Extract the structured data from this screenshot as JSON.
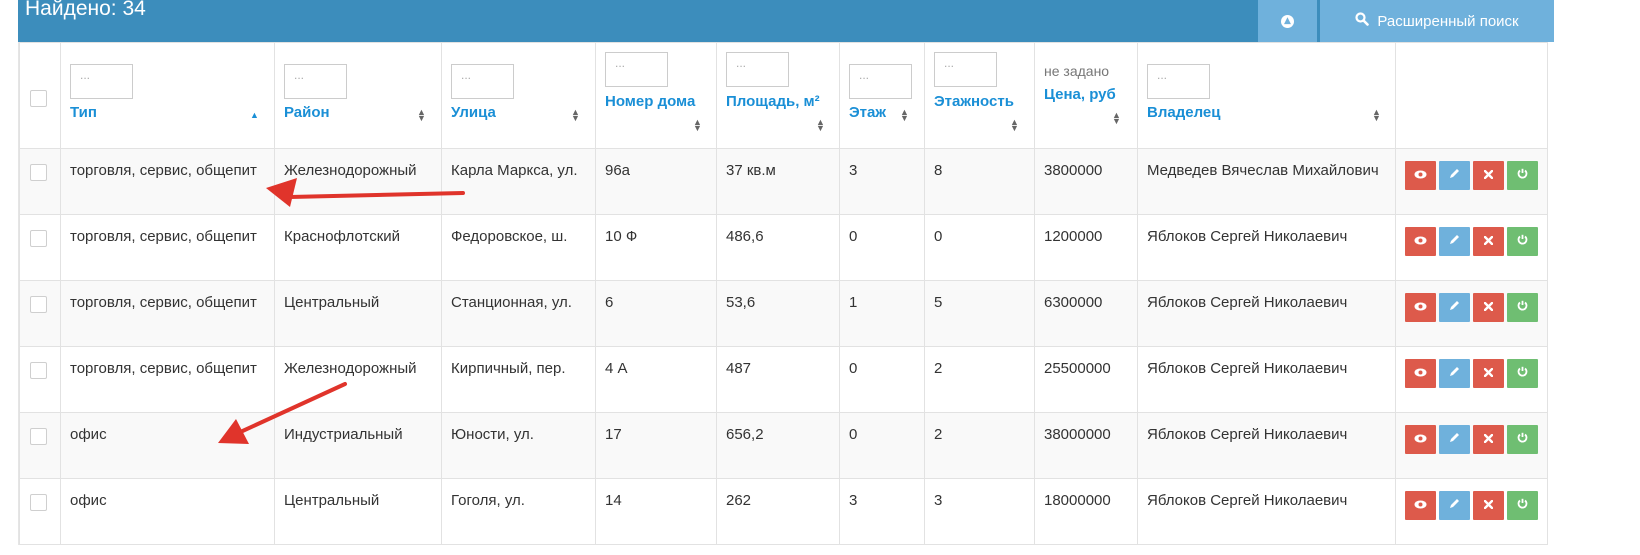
{
  "header": {
    "title": "Найдено: 34",
    "scroll_top_icon": "arrow-circle-up-icon",
    "advanced_search_label": "Расширенный поиск",
    "advanced_search_icon": "search-icon",
    "bg_color": "#3c8dbc",
    "button_color": "#6fb1dc"
  },
  "columns": {
    "type": {
      "label": "Тип",
      "filter_placeholder": "..."
    },
    "district": {
      "label": "Район",
      "filter_placeholder": "..."
    },
    "street": {
      "label": "Улица",
      "filter_placeholder": "..."
    },
    "house": {
      "label": "Номер дома",
      "filter_placeholder": "..."
    },
    "area": {
      "label": "Площадь, м²",
      "filter_placeholder": "..."
    },
    "floor": {
      "label": "Этаж",
      "filter_placeholder": "..."
    },
    "floors": {
      "label": "Этажность",
      "filter_placeholder": "..."
    },
    "price": {
      "label": "Цена, руб",
      "filter_value": "не задано"
    },
    "owner": {
      "label": "Владелец",
      "filter_placeholder": "..."
    }
  },
  "rows": [
    {
      "type": "торговля, сервис, общепит",
      "district": "Железнодорожный",
      "street": "Карла Маркса, ул.",
      "house": "96а",
      "area": "37 кв.м",
      "floor": "3",
      "floors": "8",
      "price": "3800000",
      "owner": "Медведев Вячеслав Михайлович"
    },
    {
      "type": "торговля, сервис, общепит",
      "district": "Краснофлотский",
      "street": "Федоровское, ш.",
      "house": "10 Ф",
      "area": "486,6",
      "floor": "0",
      "floors": "0",
      "price": "1200000",
      "owner": "Яблоков Сергей Николаевич"
    },
    {
      "type": "торговля, сервис, общепит",
      "district": "Центральный",
      "street": "Станционная, ул.",
      "house": "6",
      "area": "53,6",
      "floor": "1",
      "floors": "5",
      "price": "6300000",
      "owner": "Яблоков Сергей Николаевич"
    },
    {
      "type": "торговля, сервис, общепит",
      "district": "Железнодорожный",
      "street": "Кирпичный, пер.",
      "house": "4 А",
      "area": "487",
      "floor": "0",
      "floors": "2",
      "price": "25500000",
      "owner": "Яблоков Сергей Николаевич"
    },
    {
      "type": "офис",
      "district": "Индустриальный",
      "street": "Юности, ул.",
      "house": "17",
      "area": "656,2",
      "floor": "0",
      "floors": "2",
      "price": "38000000",
      "owner": "Яблоков Сергей Николаевич"
    },
    {
      "type": "офис",
      "district": "Центральный",
      "street": "Гоголя, ул.",
      "house": "14",
      "area": "262",
      "floor": "3",
      "floors": "3",
      "price": "18000000",
      "owner": "Яблоков Сергей Николаевич"
    }
  ],
  "row_actions": [
    "eye-icon",
    "pencil-icon",
    "close-icon",
    "power-icon"
  ],
  "colors": {
    "link": "#1a8fd6",
    "view": "#dd5a4b",
    "edit": "#6fb1dc",
    "delete": "#dd5a4b",
    "power": "#6fbe72",
    "annotation_arrow": "#e0342b"
  }
}
